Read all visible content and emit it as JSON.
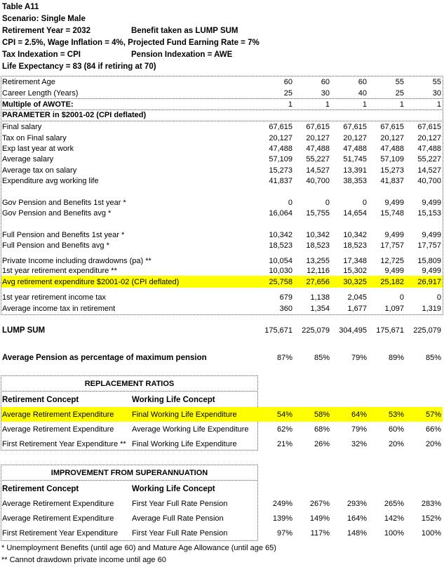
{
  "header": {
    "title": "Table A11",
    "scenario": "Scenario: Single Male",
    "retirement_year": "Retirement Year = 2032",
    "benefit": "Benefit taken as LUMP SUM",
    "assumptions": "CPI = 2.5%, Wage Inflation = 4%, Projected Fund Earning Rate = 7%",
    "tax_indexation": "Tax Indexation = CPI",
    "pension_indexation": "Pension Indexation = AWE",
    "life_expectancy": "Life Expectancy = 83 (84 if retiring at 70)"
  },
  "highlight_color": "#ffff00",
  "main_table": {
    "rows": [
      {
        "label": "Retirement Age",
        "values": [
          "60",
          "60",
          "60",
          "55",
          "55"
        ]
      },
      {
        "label": "Career Length (Years)",
        "values": [
          "25",
          "30",
          "40",
          "25",
          "30"
        ]
      },
      {
        "label": "Multiple of AWOTE:",
        "values": [
          "1",
          "1",
          "1",
          "1",
          "1"
        ],
        "bold": true
      },
      {
        "label": "PARAMETER in $2001-02 (CPI deflated)",
        "values": [],
        "bold": true
      },
      {
        "label": "Final salary",
        "values": [
          "67,615",
          "67,615",
          "67,615",
          "67,615",
          "67,615"
        ]
      },
      {
        "label": "Tax on Final salary",
        "values": [
          "20,127",
          "20,127",
          "20,127",
          "20,127",
          "20,127"
        ]
      },
      {
        "label": "Exp last year at work",
        "values": [
          "47,488",
          "47,488",
          "47,488",
          "47,488",
          "47,488"
        ]
      },
      {
        "label": "Average salary",
        "values": [
          "57,109",
          "55,227",
          "51,745",
          "57,109",
          "55,227"
        ]
      },
      {
        "label": "Average tax on salary",
        "values": [
          "15,273",
          "14,527",
          "13,391",
          "15,273",
          "14,527"
        ]
      },
      {
        "label": "Expenditure avg working life",
        "values": [
          "41,837",
          "40,700",
          "38,353",
          "41,837",
          "40,700"
        ]
      },
      {
        "label": "Gov Pension and Benefits 1st year *",
        "values": [
          "0",
          "0",
          "0",
          "9,499",
          "9,499"
        ]
      },
      {
        "label": "Gov Pension and Benefits avg *",
        "values": [
          "16,064",
          "15,755",
          "14,654",
          "15,748",
          "15,153"
        ]
      },
      {
        "label": "Full Pension and Benefits 1st year *",
        "values": [
          "10,342",
          "10,342",
          "10,342",
          "9,499",
          "9,499"
        ]
      },
      {
        "label": "Full Pension and Benefits avg *",
        "values": [
          "18,523",
          "18,523",
          "18,523",
          "17,757",
          "17,757"
        ]
      },
      {
        "label": "Private Income including drawdowns (pa) **",
        "values": [
          "10,054",
          "13,255",
          "17,348",
          "12,725",
          "15,809"
        ]
      },
      {
        "label": "1st year retirement expenditure **",
        "values": [
          "10,030",
          "12,116",
          "15,302",
          "9,499",
          "9,499"
        ]
      },
      {
        "label": "Avg retirement expenditure $2001-02 (CPI deflated)",
        "values": [
          "25,758",
          "27,656",
          "30,325",
          "25,182",
          "26,917"
        ],
        "highlight": true
      },
      {
        "label": "1st year retirement income tax",
        "values": [
          "679",
          "1,138",
          "2,045",
          "0",
          "0"
        ]
      },
      {
        "label": "Average income tax in retirement",
        "values": [
          "360",
          "1,354",
          "1,677",
          "1,097",
          "1,319"
        ]
      }
    ]
  },
  "lump_sum": {
    "label": "LUMP SUM",
    "values": [
      "175,671",
      "225,079",
      "304,495",
      "175,671",
      "225,079"
    ]
  },
  "avg_pension_pct": {
    "label": "Average Pension as percentage of  maximum pension",
    "values": [
      "87%",
      "85%",
      "79%",
      "89%",
      "85%"
    ]
  },
  "replacement_ratios": {
    "title": "REPLACEMENT RATIOS",
    "col1": "Retirement Concept",
    "col2": "Working Life Concept",
    "rows": [
      {
        "retirement": "Average Retirement Expenditure",
        "working": "Final Working Life Expenditure",
        "values": [
          "54%",
          "58%",
          "64%",
          "53%",
          "57%"
        ],
        "highlight": true
      },
      {
        "retirement": "Average Retirement Expenditure",
        "working": "Average Working Life Expenditure",
        "values": [
          "62%",
          "68%",
          "79%",
          "60%",
          "66%"
        ]
      },
      {
        "retirement": "First Retirement Year Expenditure **",
        "working": "Final Working Life Expenditure",
        "values": [
          "21%",
          "26%",
          "32%",
          "20%",
          "20%"
        ]
      }
    ]
  },
  "improvement": {
    "title": "IMPROVEMENT FROM SUPERANNUATION",
    "col1": "Retirement Concept",
    "col2": "Working Life Concept",
    "rows": [
      {
        "retirement": "Average Retirement Expenditure",
        "working": "First Year Full Rate Pension",
        "values": [
          "249%",
          "267%",
          "293%",
          "265%",
          "283%"
        ]
      },
      {
        "retirement": "Average Retirement Expenditure",
        "working": "Average Full Rate Pension",
        "values": [
          "139%",
          "149%",
          "164%",
          "142%",
          "152%"
        ]
      },
      {
        "retirement": "First Retirement Year Expenditure",
        "working": "First Year Full Rate Pension",
        "values": [
          "97%",
          "117%",
          "148%",
          "100%",
          "100%"
        ]
      }
    ]
  },
  "footnotes": [
    "* Unemployment Benefits (until age 60) and Mature Age Allowance (until age 65)",
    "** Cannot drawdown private income until age 60"
  ]
}
